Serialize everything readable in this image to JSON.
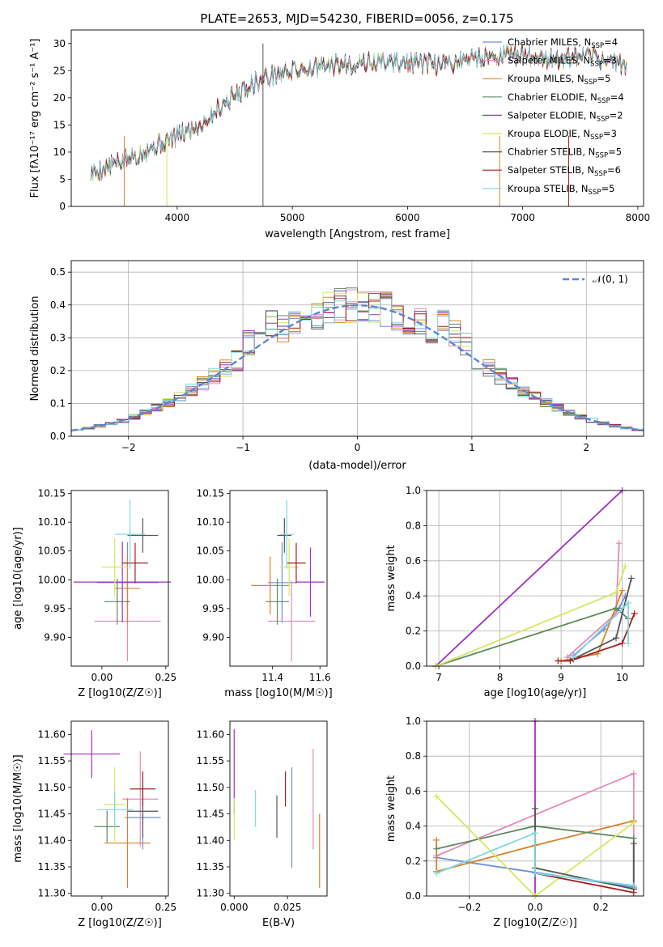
{
  "figure": {
    "title": "PLATE=2653, MJD=54230, FIBERID=0056, z=0.175"
  },
  "chart_data": [
    {
      "id": "spectrum",
      "type": "line",
      "xlabel": "wavelength [Angstrom, rest frame]",
      "ylabel": "Flux [fλ10⁻¹⁷ erg cm⁻² s⁻¹ A⁻¹]",
      "xlim": [
        3080,
        8050
      ],
      "ylim": [
        0,
        32.5
      ],
      "xticks": [
        4000,
        5000,
        6000,
        7000,
        8000
      ],
      "yticks": [
        0,
        5,
        10,
        15,
        20,
        25,
        30
      ],
      "x_range_data": [
        3250,
        7900
      ],
      "anchors": {
        "x": [
          3250,
          3500,
          3800,
          4000,
          4200,
          4400,
          4600,
          4800,
          5000,
          5300,
          5600,
          6000,
          6300,
          6600,
          7000,
          7300,
          7600,
          7900
        ],
        "y": [
          6,
          8,
          11,
          13,
          15,
          19,
          22,
          24,
          25,
          25.8,
          26.5,
          26.5,
          26,
          27.5,
          28,
          27,
          27.5,
          26
        ]
      },
      "series": [
        {
          "name": "Chabrier MILES, N_SSP=4",
          "label_main": "Chabrier MILES, N",
          "label_sub": "SSP",
          "label_tail": "=4",
          "color": "#6f8fd8"
        },
        {
          "name": "Salpeter MILES, N_SSP=3",
          "label_main": "Salpeter MILES, N",
          "label_sub": "SSP",
          "label_tail": "=3",
          "color": "#e48ab8"
        },
        {
          "name": "Kroupa MILES, N_SSP=5",
          "label_main": "Kroupa MILES, N",
          "label_sub": "SSP",
          "label_tail": "=5",
          "color": "#d9822b"
        },
        {
          "name": "Chabrier ELODIE, N_SSP=4",
          "label_main": "Chabrier ELODIE, N",
          "label_sub": "SSP",
          "label_tail": "=4",
          "color": "#5d8a5d"
        },
        {
          "name": "Salpeter ELODIE, N_SSP=2",
          "label_main": "Salpeter ELODIE, N",
          "label_sub": "SSP",
          "label_tail": "=2",
          "color": "#a030c0"
        },
        {
          "name": "Kroupa ELODIE, N_SSP=3",
          "label_main": "Kroupa ELODIE, N",
          "label_sub": "SSP",
          "label_tail": "=3",
          "color": "#d4e860"
        },
        {
          "name": "Chabrier STELIB, N_SSP=5",
          "label_main": "Chabrier STELIB, N",
          "label_sub": "SSP",
          "label_tail": "=5",
          "color": "#555555"
        },
        {
          "name": "Salpeter STELIB, N_SSP=6",
          "label_main": "Salpeter STELIB, N",
          "label_sub": "SSP",
          "label_tail": "=6",
          "color": "#a02020"
        },
        {
          "name": "Kroupa STELIB, N_SSP=5",
          "label_main": "Kroupa STELIB, N",
          "label_sub": "SSP",
          "label_tail": "=5",
          "color": "#80d8e0"
        }
      ],
      "legend": "top-right"
    },
    {
      "id": "residuals",
      "type": "histogram",
      "xlabel": "(data-model)/error",
      "ylabel": "Normed distribution",
      "xlim": [
        -2.5,
        2.5
      ],
      "ylim": [
        0,
        0.535
      ],
      "xticks": [
        -2,
        -1,
        0,
        1,
        2
      ],
      "yticks": [
        0.0,
        0.1,
        0.2,
        0.3,
        0.4,
        0.5
      ],
      "bin_width": 0.1,
      "grid": true,
      "reference_label": "𝒩(0, 1)",
      "reference_color": "#5b85d8",
      "legend": "top-right"
    },
    {
      "id": "age-vs-Z",
      "type": "errorbar",
      "xlabel": "Z [log10(Z/Z☉)]",
      "ylabel": "age  [log10(age/yr)]",
      "xlim": [
        -0.12,
        0.26
      ],
      "ylim": [
        9.85,
        10.155
      ],
      "xticks": [
        0.0,
        0.25
      ],
      "yticks": [
        9.9,
        9.95,
        10.0,
        10.05,
        10.1,
        10.15
      ],
      "points": [
        {
          "x": 0.1,
          "y": 9.995,
          "xerr": 0.12,
          "yerr": 0.07,
          "color": "#6f8fd8"
        },
        {
          "x": 0.1,
          "y": 9.928,
          "xerr": 0.13,
          "yerr": 0.07,
          "color": "#e48ab8"
        },
        {
          "x": 0.1,
          "y": 9.985,
          "xerr": 0.05,
          "yerr": 0.06,
          "color": "#d9822b"
        },
        {
          "x": 0.06,
          "y": 9.962,
          "xerr": 0.05,
          "yerr": 0.04,
          "color": "#5d8a5d"
        },
        {
          "x": 0.08,
          "y": 9.996,
          "xerr": 0.19,
          "yerr": 0.07,
          "color": "#a030c0"
        },
        {
          "x": 0.05,
          "y": 10.022,
          "xerr": 0.05,
          "yerr": 0.05,
          "color": "#d4e860"
        },
        {
          "x": 0.16,
          "y": 10.077,
          "xerr": 0.06,
          "yerr": 0.03,
          "color": "#555555"
        },
        {
          "x": 0.13,
          "y": 10.029,
          "xerr": 0.05,
          "yerr": 0.035,
          "color": "#a02020"
        },
        {
          "x": 0.11,
          "y": 10.079,
          "xerr": 0.06,
          "yerr": 0.06,
          "color": "#80d8e0"
        }
      ]
    },
    {
      "id": "age-vs-mass",
      "type": "errorbar",
      "xlabel": "mass [log10(M/M☉)]",
      "ylabel": "",
      "xlim": [
        11.22,
        11.63
      ],
      "ylim": [
        9.85,
        10.155
      ],
      "xticks": [
        11.4,
        11.6
      ],
      "yticks": [
        9.9,
        9.95,
        10.0,
        10.05,
        10.1,
        10.15
      ],
      "points": [
        {
          "x": 11.44,
          "y": 9.995,
          "xerr": 0.06,
          "yerr": 0.07,
          "color": "#6f8fd8"
        },
        {
          "x": 11.48,
          "y": 9.928,
          "xerr": 0.1,
          "yerr": 0.07,
          "color": "#e48ab8"
        },
        {
          "x": 11.39,
          "y": 9.99,
          "xerr": 0.08,
          "yerr": 0.05,
          "color": "#d9822b"
        },
        {
          "x": 11.42,
          "y": 9.962,
          "xerr": 0.05,
          "yerr": 0.04,
          "color": "#5d8a5d"
        },
        {
          "x": 11.56,
          "y": 9.996,
          "xerr": 0.06,
          "yerr": 0.06,
          "color": "#a030c0"
        },
        {
          "x": 11.47,
          "y": 10.022,
          "xerr": 0.04,
          "yerr": 0.05,
          "color": "#d4e860"
        },
        {
          "x": 11.45,
          "y": 10.077,
          "xerr": 0.03,
          "yerr": 0.03,
          "color": "#555555"
        },
        {
          "x": 11.5,
          "y": 10.029,
          "xerr": 0.04,
          "yerr": 0.035,
          "color": "#a02020"
        },
        {
          "x": 11.46,
          "y": 10.079,
          "xerr": 0.03,
          "yerr": 0.06,
          "color": "#80d8e0"
        }
      ]
    },
    {
      "id": "weight-vs-age",
      "type": "line",
      "xlabel": "age  [log10(age/yr)]",
      "ylabel": "mass weight",
      "xlim": [
        6.8,
        10.35
      ],
      "ylim": [
        0.0,
        1.0
      ],
      "xticks": [
        7,
        8,
        9,
        10
      ],
      "yticks": [
        0.0,
        0.2,
        0.4,
        0.6,
        0.8,
        1.0
      ],
      "grid": true,
      "series": [
        {
          "color": "#6f8fd8",
          "x": [
            9.2,
            9.7,
            9.95,
            10.05
          ],
          "y": [
            0.06,
            0.21,
            0.33,
            0.4
          ]
        },
        {
          "color": "#e48ab8",
          "x": [
            9.1,
            9.9,
            9.95
          ],
          "y": [
            0.05,
            0.3,
            0.7
          ]
        },
        {
          "color": "#d9822b",
          "x": [
            9.0,
            9.6,
            10.0
          ],
          "y": [
            0.03,
            0.07,
            0.43
          ]
        },
        {
          "color": "#5d8a5d",
          "x": [
            6.95,
            9.9,
            10.1
          ],
          "y": [
            0.0,
            0.33,
            0.27
          ]
        },
        {
          "color": "#a030c0",
          "x": [
            6.95,
            10.0
          ],
          "y": [
            0.0,
            1.0
          ]
        },
        {
          "color": "#d4e860",
          "x": [
            6.95,
            9.9,
            10.05
          ],
          "y": [
            0.0,
            0.42,
            0.57
          ]
        },
        {
          "color": "#555555",
          "x": [
            9.2,
            9.9,
            10.15
          ],
          "y": [
            0.04,
            0.16,
            0.5
          ]
        },
        {
          "color": "#a02020",
          "x": [
            8.95,
            9.15,
            10.0,
            10.2
          ],
          "y": [
            0.03,
            0.03,
            0.13,
            0.3
          ]
        },
        {
          "color": "#80d8e0",
          "x": [
            9.2,
            10.1,
            10.1
          ],
          "y": [
            0.05,
            0.36,
            0.13
          ]
        }
      ]
    },
    {
      "id": "mass-vs-Z",
      "type": "errorbar",
      "xlabel": "Z [log10(Z/Z☉)]",
      "ylabel": "mass [log10(M/M☉)]",
      "xlim": [
        -0.12,
        0.26
      ],
      "ylim": [
        11.295,
        11.625
      ],
      "xticks": [
        0.0,
        0.25
      ],
      "yticks": [
        11.3,
        11.35,
        11.4,
        11.45,
        11.5,
        11.55,
        11.6
      ],
      "points": [
        {
          "x": 0.16,
          "y": 11.443,
          "xerr": 0.07,
          "yerr": 0.06,
          "color": "#6f8fd8"
        },
        {
          "x": 0.15,
          "y": 11.478,
          "xerr": 0.07,
          "yerr": 0.09,
          "color": "#e48ab8"
        },
        {
          "x": 0.1,
          "y": 11.395,
          "xerr": 0.09,
          "yerr": 0.085,
          "color": "#d9822b"
        },
        {
          "x": 0.02,
          "y": 11.426,
          "xerr": 0.05,
          "yerr": 0.03,
          "color": "#5d8a5d"
        },
        {
          "x": -0.04,
          "y": 11.563,
          "xerr": 0.11,
          "yerr": 0.045,
          "color": "#a030c0"
        },
        {
          "x": 0.05,
          "y": 11.468,
          "xerr": 0.04,
          "yerr": 0.07,
          "color": "#d4e860"
        },
        {
          "x": 0.16,
          "y": 11.455,
          "xerr": 0.06,
          "yerr": 0.05,
          "color": "#555555"
        },
        {
          "x": 0.16,
          "y": 11.497,
          "xerr": 0.05,
          "yerr": 0.033,
          "color": "#a02020"
        },
        {
          "x": 0.05,
          "y": 11.458,
          "xerr": 0.07,
          "yerr": 0.035,
          "color": "#80d8e0"
        }
      ]
    },
    {
      "id": "mass-vs-EBV",
      "type": "errorbar",
      "xlabel": "E(B-V)",
      "ylabel": "",
      "xlim": [
        -0.002,
        0.0435
      ],
      "ylim": [
        11.295,
        11.625
      ],
      "xticks": [
        0.0,
        0.025
      ],
      "yticks": [
        11.3,
        11.35,
        11.4,
        11.45,
        11.5,
        11.55,
        11.6
      ],
      "points": [
        {
          "x": 0.027,
          "y": 11.443,
          "yerr": 0.095,
          "color": "#6f8fd8"
        },
        {
          "x": 0.037,
          "y": 11.478,
          "yerr": 0.095,
          "color": "#e48ab8"
        },
        {
          "x": 0.04,
          "y": 11.38,
          "yerr": 0.07,
          "color": "#d9822b"
        },
        {
          "x": 0.0,
          "y": 11.53,
          "yerr": 0.08,
          "color": "#a030c0"
        },
        {
          "x": 0.0,
          "y": 11.44,
          "yerr": 0.04,
          "color": "#d4e860"
        },
        {
          "x": 0.02,
          "y": 11.445,
          "yerr": 0.04,
          "color": "#555555"
        },
        {
          "x": 0.024,
          "y": 11.497,
          "yerr": 0.033,
          "color": "#a02020"
        },
        {
          "x": 0.01,
          "y": 11.46,
          "yerr": 0.035,
          "color": "#80d8e0"
        }
      ]
    },
    {
      "id": "weight-vs-Z",
      "type": "line",
      "xlabel": "Z [log10(Z/Z☉)]",
      "ylabel": "mass weight",
      "xlim": [
        -0.33,
        0.33
      ],
      "ylim": [
        0.0,
        1.0
      ],
      "xticks": [
        -0.2,
        0.0,
        0.2
      ],
      "yticks": [
        0.0,
        0.2,
        0.4,
        0.6,
        0.8,
        1.0
      ],
      "grid": true,
      "series": [
        {
          "color": "#6f8fd8",
          "x": [
            -0.3,
            0.3
          ],
          "y": [
            0.22,
            0.05
          ]
        },
        {
          "color": "#e48ab8",
          "x": [
            -0.3,
            0.3,
            0.3
          ],
          "y": [
            0.23,
            0.7,
            0.06
          ]
        },
        {
          "color": "#d9822b",
          "x": [
            -0.3,
            -0.3,
            0.0,
            0.3
          ],
          "y": [
            0.32,
            0.14,
            0.29,
            0.43
          ]
        },
        {
          "color": "#5d8a5d",
          "x": [
            -0.3,
            0.0,
            0.3,
            0.3
          ],
          "y": [
            0.27,
            0.4,
            0.33,
            0.04
          ]
        },
        {
          "color": "#a030c0",
          "x": [
            0.0,
            0.0
          ],
          "y": [
            0.0,
            1.0
          ]
        },
        {
          "color": "#d4e860",
          "x": [
            -0.3,
            0.0,
            0.3
          ],
          "y": [
            0.57,
            0.0,
            0.42
          ]
        },
        {
          "color": "#555555",
          "x": [
            0.0,
            0.0,
            0.3,
            0.3
          ],
          "y": [
            0.5,
            0.16,
            0.04,
            0.3
          ]
        },
        {
          "color": "#a02020",
          "x": [
            0.0,
            0.3
          ],
          "y": [
            0.13,
            0.02
          ]
        },
        {
          "color": "#80d8e0",
          "x": [
            -0.3,
            0.0,
            0.0,
            0.3
          ],
          "y": [
            0.13,
            0.36,
            0.13,
            0.06
          ]
        }
      ]
    }
  ]
}
